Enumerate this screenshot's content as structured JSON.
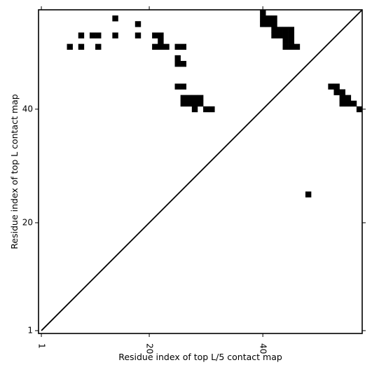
{
  "chart_data": {
    "type": "heatmap",
    "xlabel": "Residue index of top L/5 contact map",
    "ylabel": "Residue index of top L contact map",
    "xlim": [
      0.5,
      57.5
    ],
    "ylim": [
      0.5,
      57.5
    ],
    "xticks": [
      1,
      20,
      40
    ],
    "yticks": [
      1,
      20,
      40
    ],
    "tick_labels_x": [
      "1",
      "20",
      "40"
    ],
    "tick_labels_y": [
      "1",
      "20",
      "40"
    ],
    "diagonal": true,
    "cell_color": "#000000",
    "background_color": "#ffffff",
    "cells": [
      [
        14,
        56
      ],
      [
        18,
        55
      ],
      [
        8,
        53
      ],
      [
        10,
        53
      ],
      [
        11,
        53
      ],
      [
        14,
        53
      ],
      [
        18,
        53
      ],
      [
        21,
        53
      ],
      [
        22,
        53
      ],
      [
        6,
        51
      ],
      [
        8,
        51
      ],
      [
        11,
        51
      ],
      [
        21,
        51
      ],
      [
        22,
        51
      ],
      [
        23,
        51
      ],
      [
        25,
        51
      ],
      [
        26,
        51
      ],
      [
        22,
        52
      ],
      [
        25,
        49
      ],
      [
        25,
        48
      ],
      [
        26,
        48
      ],
      [
        25,
        44
      ],
      [
        26,
        44
      ],
      [
        26,
        42
      ],
      [
        27,
        42
      ],
      [
        28,
        42
      ],
      [
        29,
        42
      ],
      [
        26,
        41
      ],
      [
        27,
        41
      ],
      [
        28,
        41
      ],
      [
        29,
        41
      ],
      [
        28,
        40
      ],
      [
        30,
        40
      ],
      [
        31,
        40
      ],
      [
        40,
        57
      ],
      [
        40,
        56
      ],
      [
        40,
        55
      ],
      [
        41,
        56
      ],
      [
        41,
        55
      ],
      [
        42,
        56
      ],
      [
        42,
        55
      ],
      [
        42,
        54
      ],
      [
        42,
        53
      ],
      [
        43,
        54
      ],
      [
        43,
        53
      ],
      [
        44,
        54
      ],
      [
        44,
        53
      ],
      [
        44,
        52
      ],
      [
        44,
        51
      ],
      [
        45,
        54
      ],
      [
        45,
        53
      ],
      [
        45,
        52
      ],
      [
        45,
        51
      ],
      [
        46,
        51
      ],
      [
        52,
        44
      ],
      [
        53,
        44
      ],
      [
        53,
        43
      ],
      [
        54,
        43
      ],
      [
        54,
        42
      ],
      [
        55,
        42
      ],
      [
        54,
        41
      ],
      [
        55,
        41
      ],
      [
        56,
        41
      ],
      [
        57,
        40
      ],
      [
        48,
        25
      ]
    ]
  }
}
